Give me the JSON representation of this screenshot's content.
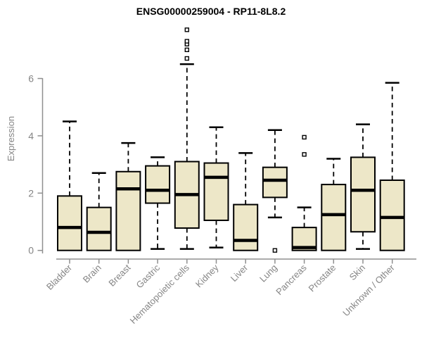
{
  "page": {
    "background": "#ffffff"
  },
  "chart_data": {
    "type": "boxplot",
    "title": "ENSG00000259004 - RP11-8L8.2",
    "ylabel": "Expression",
    "xlabel": "",
    "ylim": [
      0,
      7.9
    ],
    "yticks": [
      0,
      2,
      4,
      6
    ],
    "grid": false,
    "legend": null,
    "categories": [
      "Bladder",
      "Brain",
      "Breast",
      "Gastric",
      "Hematopoietic cells",
      "Kidney",
      "Liver",
      "Lung",
      "Pancreas",
      "Prostate",
      "Skin",
      "Unknown / Other"
    ],
    "boxes": [
      {
        "category": "Bladder",
        "low": 0,
        "q1": 0,
        "median": 0.8,
        "q3": 1.9,
        "high": 4.5,
        "outliers": []
      },
      {
        "category": "Brain",
        "low": 0,
        "q1": 0,
        "median": 0.63,
        "q3": 1.5,
        "high": 2.7,
        "outliers": []
      },
      {
        "category": "Breast",
        "low": 0,
        "q1": 0,
        "median": 2.15,
        "q3": 2.75,
        "high": 3.75,
        "outliers": []
      },
      {
        "category": "Gastric",
        "low": 0.05,
        "q1": 1.65,
        "median": 2.1,
        "q3": 2.95,
        "high": 3.25,
        "outliers": []
      },
      {
        "category": "Hematopoietic cells",
        "low": 0.05,
        "q1": 0.78,
        "median": 1.95,
        "q3": 3.1,
        "high": 6.5,
        "outliers": [
          6.7,
          7.0,
          7.2,
          7.3,
          7.7
        ]
      },
      {
        "category": "Kidney",
        "low": 0.1,
        "q1": 1.05,
        "median": 2.55,
        "q3": 3.05,
        "high": 4.3,
        "outliers": []
      },
      {
        "category": "Liver",
        "low": 0,
        "q1": 0,
        "median": 0.35,
        "q3": 1.6,
        "high": 3.4,
        "outliers": []
      },
      {
        "category": "Lung",
        "low": 1.15,
        "q1": 1.85,
        "median": 2.45,
        "q3": 2.9,
        "high": 4.2,
        "outliers": [
          0
        ]
      },
      {
        "category": "Pancreas",
        "low": 0,
        "q1": 0,
        "median": 0.1,
        "q3": 0.8,
        "high": 1.5,
        "outliers": [
          3.35,
          3.95
        ]
      },
      {
        "category": "Prostate",
        "low": 0,
        "q1": 0,
        "median": 1.25,
        "q3": 2.3,
        "high": 3.2,
        "outliers": []
      },
      {
        "category": "Skin",
        "low": 0.05,
        "q1": 0.65,
        "median": 2.1,
        "q3": 3.25,
        "high": 4.4,
        "outliers": []
      },
      {
        "category": "Unknown / Other",
        "low": 0,
        "q1": 0,
        "median": 1.15,
        "q3": 2.45,
        "high": 5.85,
        "outliers": []
      }
    ],
    "colors": {
      "box_fill": "#EDE7C8",
      "box_stroke": "#000000",
      "median": "#000000",
      "whisker": "#000000",
      "outlier_stroke": "#000000",
      "outlier_fill": "#ffffff",
      "axis": "#8F8F8F",
      "label_text": "#858585",
      "title": "#000000"
    }
  }
}
